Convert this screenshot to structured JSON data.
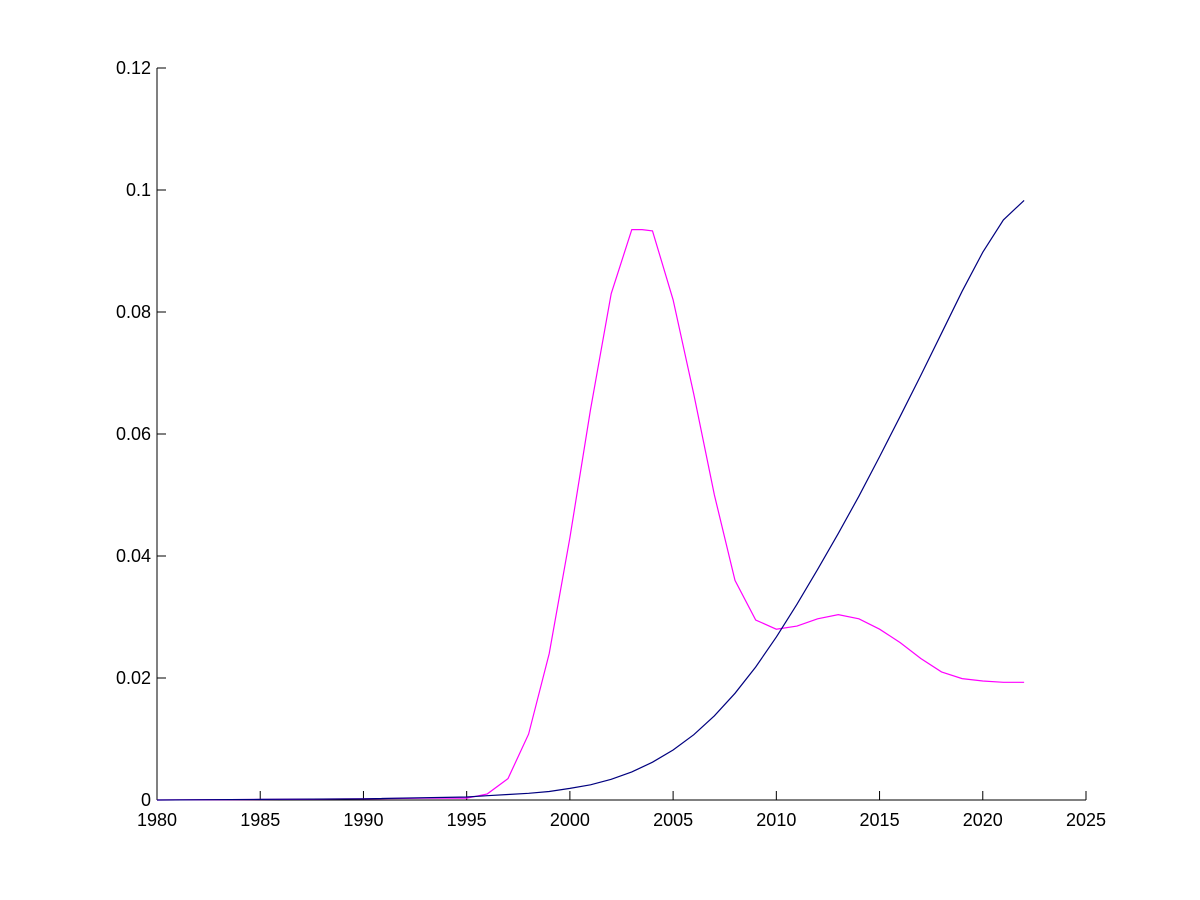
{
  "chart_data": {
    "type": "line",
    "title": "",
    "xlabel": "",
    "ylabel": "",
    "xlim": [
      1980,
      2025
    ],
    "ylim": [
      0,
      0.12
    ],
    "grid": false,
    "legend": "none",
    "x_ticks": [
      "1980",
      "1985",
      "1990",
      "1995",
      "2000",
      "2005",
      "2010",
      "2015",
      "2020",
      "2025"
    ],
    "y_ticks": [
      "0",
      "0.02",
      "0.04",
      "0.06",
      "0.08",
      "0.1",
      "0.12"
    ],
    "x_tick_values": [
      1980,
      1985,
      1990,
      1995,
      2000,
      2005,
      2010,
      2015,
      2020,
      2025
    ],
    "y_tick_values": [
      0,
      0.02,
      0.04,
      0.06,
      0.08,
      0.1,
      0.12
    ],
    "series": [
      {
        "color": "#ff00ff",
        "x": [
          1980,
          1986,
          1990,
          1993,
          1995,
          1996,
          1997,
          1998,
          1999,
          2000,
          2001,
          2002,
          2003,
          2003.5,
          2004,
          2005,
          2006,
          2007,
          2008,
          2009,
          2010,
          2011,
          2012,
          2013,
          2014,
          2015,
          2016,
          2017,
          2018,
          2019,
          2020,
          2021,
          2022
        ],
        "y": [
          0,
          0.0001,
          0.0002,
          0.0003,
          0.0003,
          0.001,
          0.0035,
          0.0108,
          0.024,
          0.043,
          0.064,
          0.083,
          0.0935,
          0.0935,
          0.0933,
          0.082,
          0.0665,
          0.05,
          0.036,
          0.0295,
          0.028,
          0.0285,
          0.0297,
          0.0304,
          0.0297,
          0.028,
          0.0258,
          0.0232,
          0.021,
          0.0199,
          0.0195,
          0.0193,
          0.0193
        ]
      },
      {
        "color": "#00007f",
        "x": [
          1980,
          1985,
          1990,
          1995,
          1996,
          1997,
          1998,
          1999,
          2000,
          2001,
          2002,
          2003,
          2004,
          2005,
          2006,
          2007,
          2008,
          2009,
          2010,
          2011,
          2012,
          2013,
          2014,
          2015,
          2016,
          2017,
          2018,
          2019,
          2020,
          2021,
          2022
        ],
        "y": [
          0,
          0.0001,
          0.0002,
          0.0005,
          0.0007,
          0.0009,
          0.0011,
          0.0014,
          0.0019,
          0.0025,
          0.0034,
          0.0046,
          0.0062,
          0.0082,
          0.0107,
          0.0138,
          0.0175,
          0.0218,
          0.0267,
          0.0321,
          0.0378,
          0.0437,
          0.0498,
          0.0563,
          0.0629,
          0.0696,
          0.0765,
          0.0834,
          0.0898,
          0.0951,
          0.0983
        ]
      }
    ]
  }
}
